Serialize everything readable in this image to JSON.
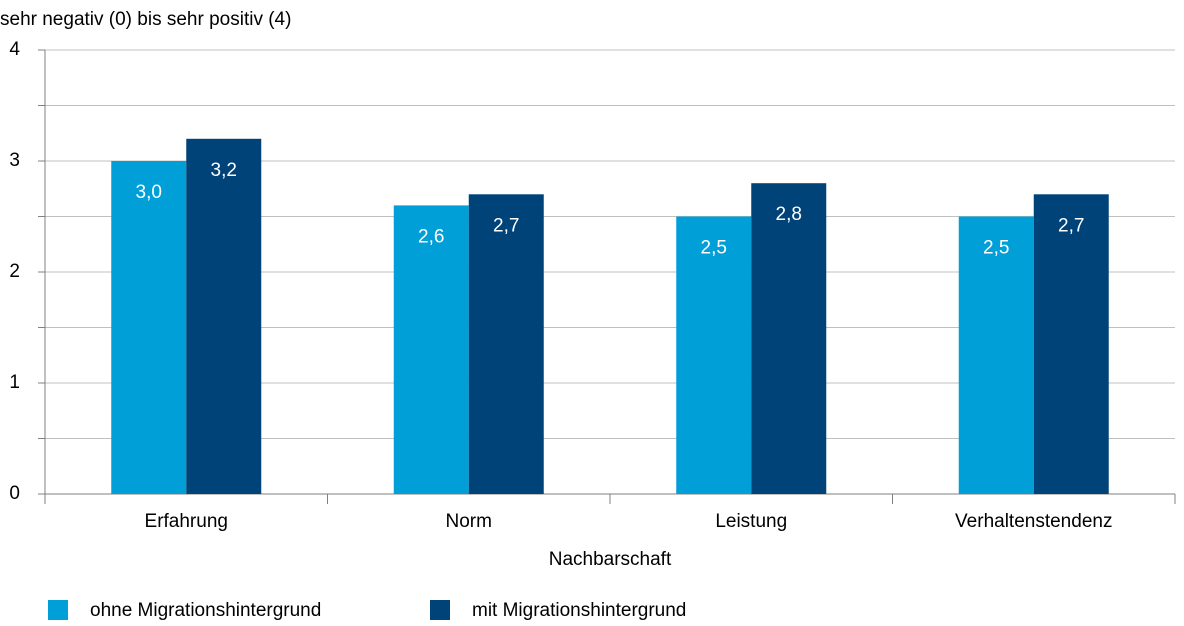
{
  "chart_data": {
    "type": "bar",
    "y_axis_label": "sehr negativ (0) bis sehr positiv (4)",
    "x_axis_label": "Nachbarschaft",
    "categories": [
      "Erfahrung",
      "Norm",
      "Leistung",
      "Verhaltenstendenz"
    ],
    "series": [
      {
        "name": "ohne Migrationshintergrund",
        "color": "#009fd8",
        "values": [
          3.0,
          2.6,
          2.5,
          2.5
        ],
        "value_labels": [
          "3,0",
          "2,6",
          "2,5",
          "2,5"
        ]
      },
      {
        "name": "mit Migrationshintergrund",
        "color": "#004379",
        "values": [
          3.2,
          2.7,
          2.8,
          2.7
        ],
        "value_labels": [
          "3,2",
          "2,7",
          "2,8",
          "2,7"
        ]
      }
    ],
    "ylim": [
      0,
      4
    ],
    "yticks": [
      0,
      1,
      2,
      3,
      4
    ],
    "grid": true,
    "legend": "bottom"
  }
}
